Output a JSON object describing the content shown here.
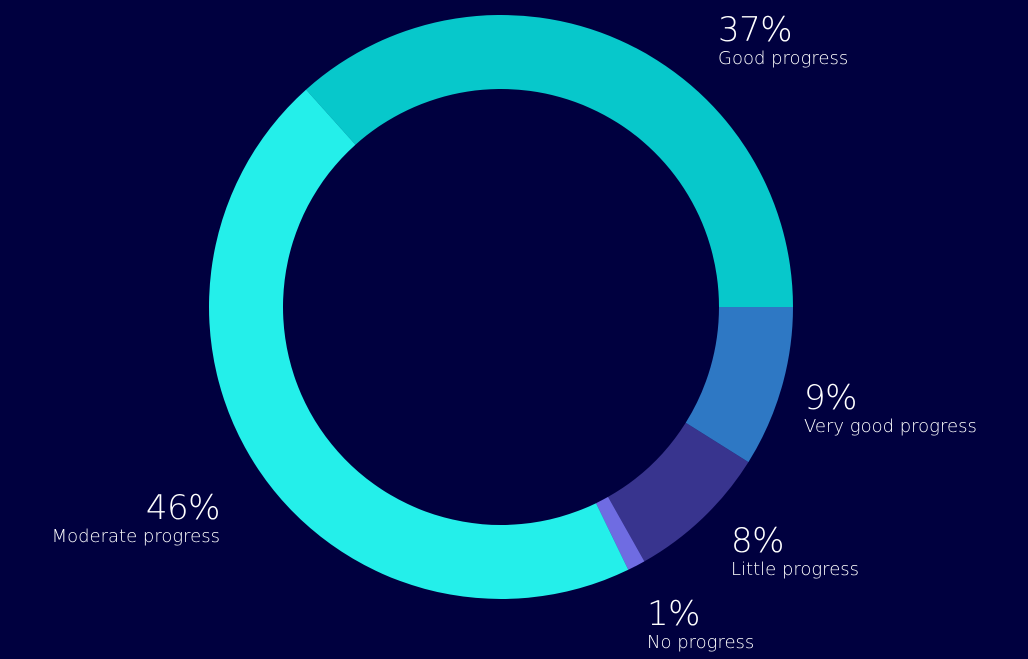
{
  "chart_data": {
    "type": "pie",
    "variant": "donut",
    "start_angle_deg": 90,
    "direction": "clockwise",
    "slices": [
      {
        "category": "Very good progress",
        "value": 9,
        "label": "9%",
        "color": "#2e78c4"
      },
      {
        "category": "Little progress",
        "value": 8,
        "label": "8%",
        "color": "#38348e"
      },
      {
        "category": "No progress",
        "value": 1,
        "label": "1%",
        "color": "#6f6ce2"
      },
      {
        "category": "Moderate progress",
        "value": 46,
        "label": "46%",
        "color": "#24efea"
      },
      {
        "category": "Good progress",
        "value": 37,
        "label": "37%",
        "color": "#07c8cb"
      }
    ],
    "background": "#00003f",
    "label_color": "#ffffff"
  }
}
